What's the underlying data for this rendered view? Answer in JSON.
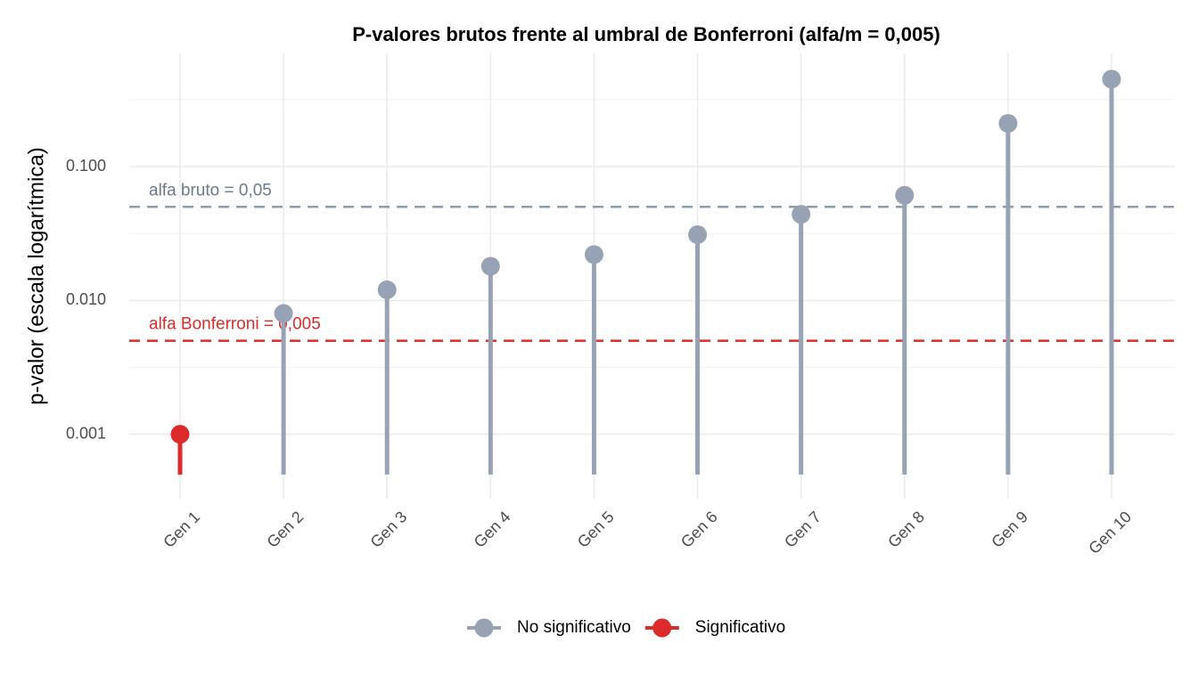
{
  "chart_data": {
    "type": "lollipop",
    "title": "P-valores brutos frente al umbral de Bonferroni (alfa/m = 0,005)",
    "y_label": "p-valor (escala logarítmica)",
    "log_scale_y": true,
    "grid": true,
    "categories": [
      "Gen 1",
      "Gen 2",
      "Gen 3",
      "Gen 4",
      "Gen 5",
      "Gen 6",
      "Gen 7",
      "Gen 8",
      "Gen 9",
      "Gen 10"
    ],
    "series": [
      {
        "name": "No significativo",
        "color": "#97a3b4",
        "values": [
          null,
          0.008,
          0.012,
          0.018,
          0.022,
          0.031,
          0.044,
          0.061,
          0.21,
          0.45
        ]
      },
      {
        "name": "Significativo",
        "color": "#dd2a2a",
        "values": [
          0.001,
          null,
          null,
          null,
          null,
          null,
          null,
          null,
          null,
          null
        ]
      }
    ],
    "stem_base": 0.0005,
    "ylim": [
      0.00033,
      0.7
    ],
    "yticks": [
      0.001,
      {
        "value": 0.01,
        "label": "0.010"
      },
      {
        "value": 0.1,
        "label": "0.100"
      }
    ],
    "minor_gridlines": [
      0.000316,
      0.00316,
      0.0316,
      0.316
    ],
    "reference_lines": [
      {
        "value": 0.05,
        "label": "alfa bruto = 0,05",
        "color": "#8e9cac",
        "label_color": "#6b7a90"
      },
      {
        "value": 0.005,
        "label": "alfa Bonferroni = 0,005",
        "color": "#dd2a2a",
        "label_color": "#dd2a2a"
      }
    ],
    "legend": "bottom"
  }
}
